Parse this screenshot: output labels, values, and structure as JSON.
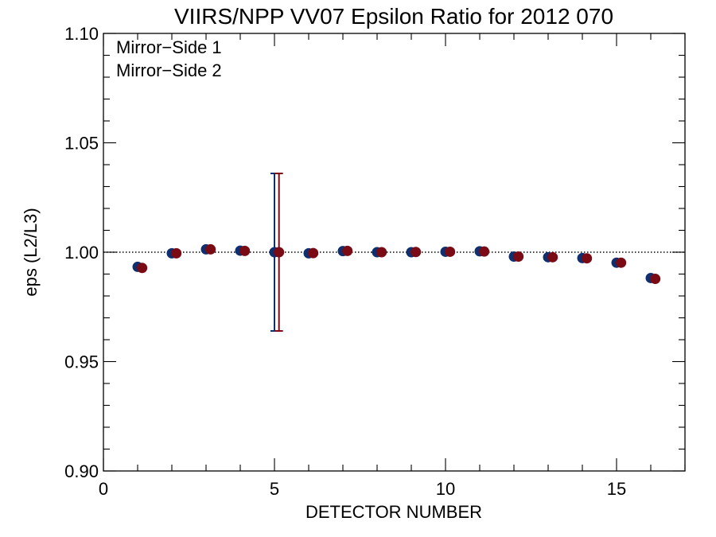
{
  "chart_data": {
    "type": "scatter",
    "title": "VIIRS/NPP VV07 Epsilon Ratio for 2012 070",
    "xlabel": "DETECTOR NUMBER",
    "ylabel": "eps (L2/L3)",
    "xlim": [
      0,
      17
    ],
    "ylim": [
      0.9,
      1.1
    ],
    "x_ticks": [
      0,
      5,
      10,
      15
    ],
    "x_tick_labels": [
      "0",
      "5",
      "10",
      "15"
    ],
    "y_ticks": [
      0.9,
      0.95,
      1.0,
      1.05,
      1.1
    ],
    "y_tick_labels": [
      "0.90",
      "0.95",
      "1.00",
      "1.05",
      "1.10"
    ],
    "reference_line": {
      "y": 1.0,
      "style": "dotted"
    },
    "legend_position": "top-left",
    "series": [
      {
        "name": "Mirror−Side 1",
        "color": "#0f2f6e",
        "x": [
          1,
          2,
          3,
          4,
          5,
          6,
          7,
          8,
          9,
          10,
          11,
          12,
          13,
          14,
          15,
          16
        ],
        "values": [
          0.9933,
          0.9995,
          1.0013,
          1.0007,
          1.0,
          0.9995,
          1.0005,
          1.0,
          1.0,
          1.0002,
          1.0004,
          0.998,
          0.9977,
          0.9973,
          0.9952,
          0.9882
        ],
        "error_bar": {
          "x": 5,
          "low": 0.964,
          "high": 1.036
        }
      },
      {
        "name": "Mirror−Side 2",
        "color": "#7a0a14",
        "x": [
          1,
          2,
          3,
          4,
          5,
          6,
          7,
          8,
          9,
          10,
          11,
          12,
          13,
          14,
          15,
          16
        ],
        "values": [
          0.9928,
          0.9995,
          1.0013,
          1.0006,
          1.0,
          0.9996,
          1.0006,
          1.0,
          1.0001,
          1.0002,
          1.0003,
          0.998,
          0.9977,
          0.9972,
          0.9952,
          0.9878
        ],
        "error_bar": {
          "x": 5,
          "low": 0.964,
          "high": 1.036
        }
      }
    ]
  }
}
